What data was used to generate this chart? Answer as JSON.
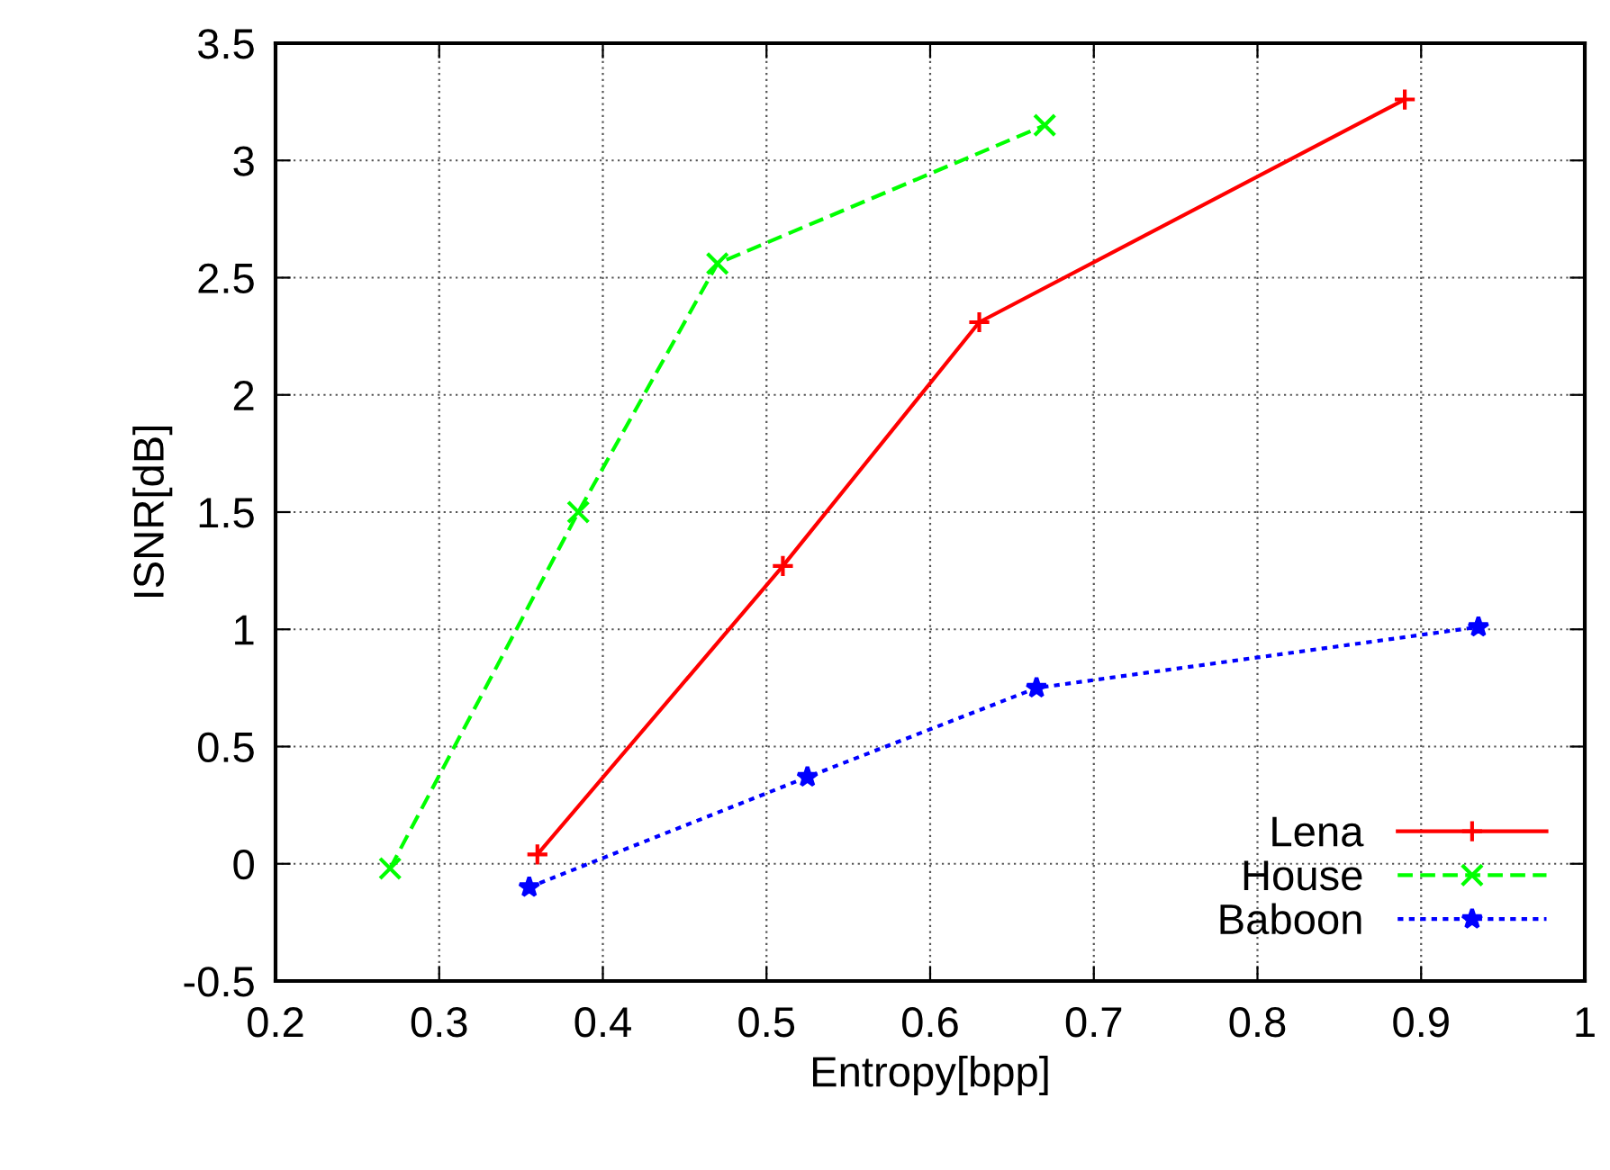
{
  "chart_data": {
    "type": "line",
    "xlabel": "Entropy[bpp]",
    "ylabel": "ISNR[dB]",
    "xlim": [
      0.2,
      1
    ],
    "xticks": [
      0.2,
      0.3,
      0.4,
      0.5,
      0.6,
      0.7,
      0.8,
      0.9,
      1
    ],
    "ylim": [
      -0.5,
      3.5
    ],
    "yticks": [
      -0.5,
      0,
      0.5,
      1,
      1.5,
      2,
      2.5,
      3,
      3.5
    ],
    "grid": true,
    "legend": "bottom right",
    "series": [
      {
        "name": "Lena",
        "color": "#ff0000",
        "marker": "plus",
        "line_style": "solid",
        "x": [
          0.36,
          0.51,
          0.63,
          0.89
        ],
        "values": [
          0.04,
          1.27,
          2.31,
          3.26
        ]
      },
      {
        "name": "House",
        "color": "#00ff00",
        "marker": "cross",
        "line_style": "dashed",
        "x": [
          0.27,
          0.385,
          0.47,
          0.67
        ],
        "values": [
          -0.02,
          1.5,
          2.56,
          3.15
        ]
      },
      {
        "name": "Baboon",
        "color": "#0000ff",
        "marker": "star",
        "line_style": "dotted",
        "x": [
          0.355,
          0.525,
          0.665,
          0.935
        ],
        "values": [
          -0.1,
          0.37,
          0.75,
          1.01
        ]
      }
    ]
  }
}
